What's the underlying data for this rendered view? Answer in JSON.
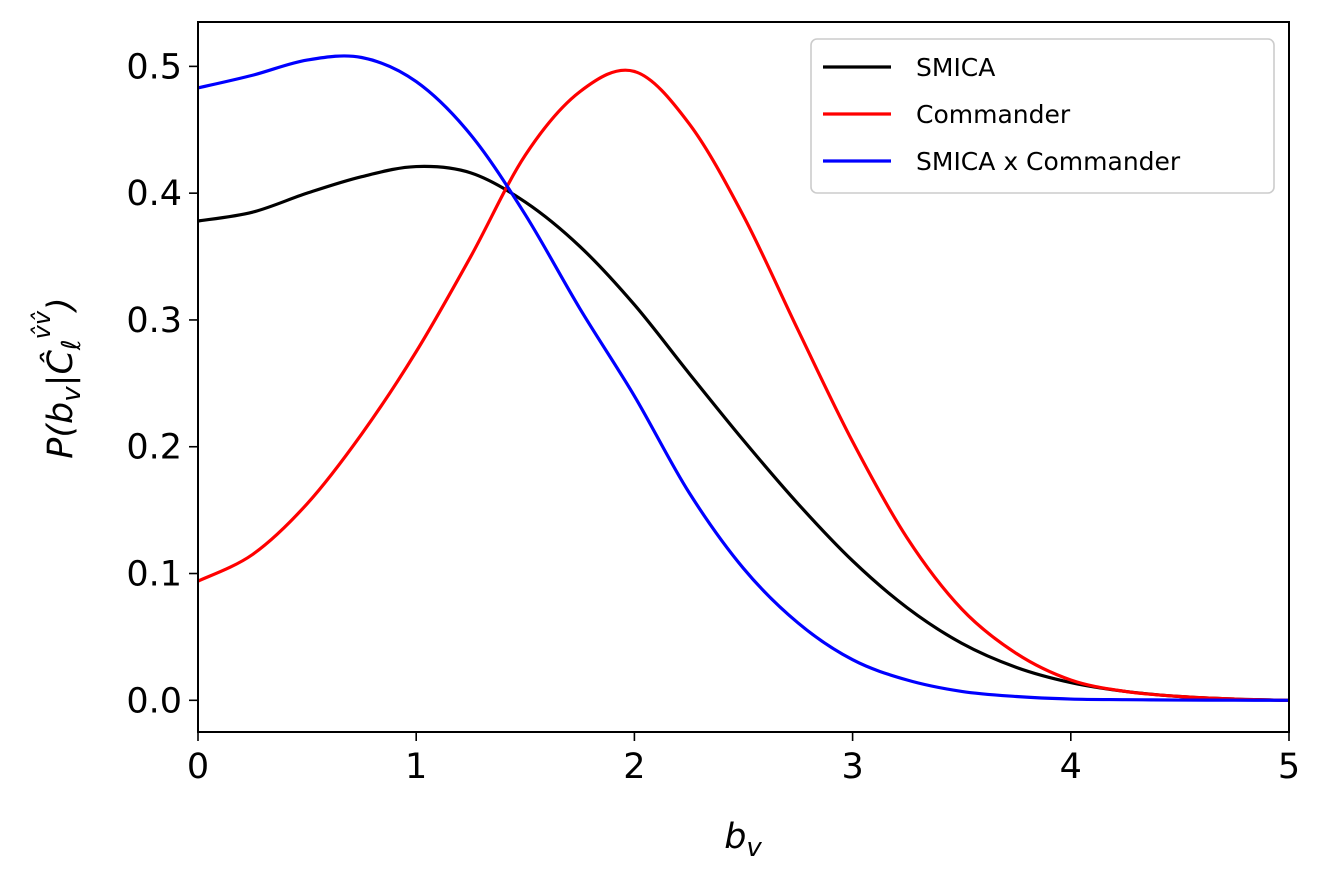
{
  "chart_data": {
    "type": "line",
    "title": "",
    "xlabel": "b_v",
    "ylabel": "P(b_v|Ĉ_ℓ^{v̂v̂})",
    "xlim": [
      0,
      5
    ],
    "ylim": [
      -0.025,
      0.535
    ],
    "xticks": [
      0,
      1,
      2,
      3,
      4,
      5
    ],
    "xtick_labels": [
      "0",
      "1",
      "2",
      "3",
      "4",
      "5"
    ],
    "yticks": [
      0.0,
      0.1,
      0.2,
      0.3,
      0.4,
      0.5
    ],
    "ytick_labels": [
      "0.0",
      "0.1",
      "0.2",
      "0.3",
      "0.4",
      "0.5"
    ],
    "grid": false,
    "legend_position": "top-right",
    "x": [
      0,
      0.25,
      0.5,
      0.75,
      1.0,
      1.25,
      1.5,
      1.75,
      2.0,
      2.25,
      2.5,
      2.75,
      3.0,
      3.25,
      3.5,
      3.75,
      4.0,
      4.25,
      4.5,
      4.75,
      5.0
    ],
    "series": [
      {
        "name": "SMICA",
        "color": "#000000",
        "values": [
          0.378,
          0.385,
          0.4,
          0.413,
          0.421,
          0.416,
          0.393,
          0.358,
          0.312,
          0.258,
          0.205,
          0.155,
          0.11,
          0.073,
          0.045,
          0.026,
          0.014,
          0.007,
          0.003,
          0.001,
          0.0
        ]
      },
      {
        "name": "Commander",
        "color": "#ff0000",
        "values": [
          0.094,
          0.115,
          0.155,
          0.21,
          0.275,
          0.35,
          0.43,
          0.48,
          0.496,
          0.455,
          0.382,
          0.292,
          0.204,
          0.128,
          0.072,
          0.037,
          0.016,
          0.007,
          0.003,
          0.001,
          0.0
        ]
      },
      {
        "name": "SMICA x Commander",
        "color": "#0000ff",
        "values": [
          0.483,
          0.493,
          0.505,
          0.507,
          0.488,
          0.446,
          0.383,
          0.309,
          0.24,
          0.164,
          0.104,
          0.061,
          0.032,
          0.016,
          0.007,
          0.003,
          0.001,
          0.0005,
          0.0002,
          0.0001,
          0.0
        ]
      }
    ]
  }
}
